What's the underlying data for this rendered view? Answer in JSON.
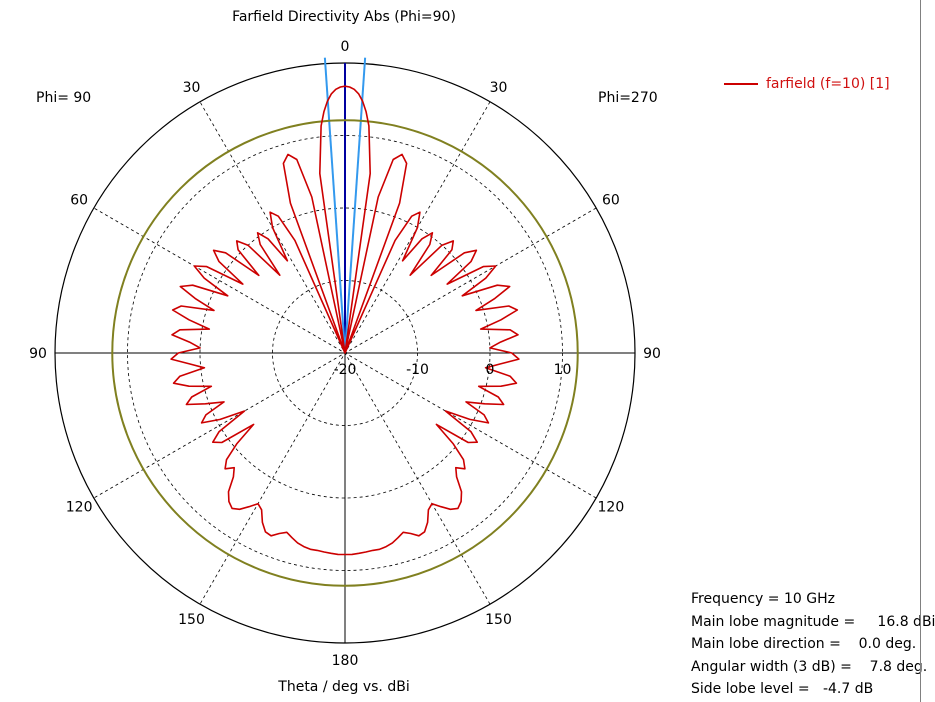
{
  "chart_data": {
    "type": "polar",
    "title": "Farfield Directivity Abs (Phi=90)",
    "xlabel": "Theta / deg vs. dBi",
    "left_half_label": "Phi= 90",
    "right_half_label": "Phi=270",
    "angle_tick_labels": [
      "0",
      "30",
      "60",
      "90",
      "120",
      "150",
      "180"
    ],
    "angle_ticks_deg": [
      0,
      30,
      60,
      90,
      120,
      150,
      180
    ],
    "radial_tick_labels": [
      "-20",
      "-10",
      "0",
      "10"
    ],
    "radial_ticks_dbi": [
      -20,
      -10,
      0,
      10
    ],
    "radial_range_dbi": [
      -20,
      20
    ],
    "series": [
      {
        "name": "farfield (f=10) [1]",
        "color": "#cc0000",
        "theta_deg": [
          0,
          1,
          2,
          3,
          4,
          5,
          6,
          8,
          10,
          12,
          14,
          16,
          18,
          20,
          22,
          24,
          26,
          28,
          30,
          32,
          34,
          36,
          38,
          40,
          42,
          44,
          46,
          48,
          50,
          52,
          54,
          56,
          58,
          60,
          62,
          64,
          66,
          68,
          70,
          72,
          74,
          76,
          78,
          80,
          82,
          84,
          86,
          88,
          90,
          92,
          94,
          96,
          98,
          100,
          102,
          104,
          106,
          108,
          110,
          112,
          114,
          116,
          118,
          120,
          122,
          124,
          126,
          128,
          130,
          132,
          134,
          136,
          138,
          140,
          142,
          144,
          146,
          148,
          150,
          152,
          154,
          156,
          158,
          160,
          162,
          164,
          166,
          168,
          170,
          172,
          174,
          176,
          178,
          180
        ],
        "directivity_dbi": [
          16.8,
          16.7,
          16.4,
          15.8,
          14.8,
          13.4,
          11.5,
          5,
          -20,
          2,
          7.5,
          8.5,
          7.5,
          2,
          -20,
          -3,
          1,
          2,
          0,
          -5,
          -1,
          0.5,
          -1,
          -6,
          0,
          1.5,
          0.5,
          -4,
          1.5,
          3,
          1.5,
          -3,
          2.5,
          4,
          2,
          -2,
          3,
          4.5,
          2,
          -1,
          3.5,
          4.5,
          2,
          -1,
          3,
          4,
          1.5,
          0,
          3,
          4,
          1.5,
          -0.5,
          3,
          4,
          2,
          -1,
          2,
          3,
          0.5,
          -2,
          1,
          2,
          -0.5,
          -4,
          0.5,
          2,
          1,
          -4,
          -0.5,
          2,
          3,
          2,
          3,
          5,
          6,
          6.5,
          6,
          5,
          4,
          4.5,
          6,
          7,
          7.2,
          6.5,
          6,
          6.5,
          7,
          7.3,
          7.5,
          7.5,
          7.6,
          7.7,
          7.8,
          7.8
        ]
      }
    ],
    "reference_lines": [
      {
        "name": "main lobe direction",
        "angle_deg": 0,
        "color": "#0000a0"
      },
      {
        "name": "3 dB angular width",
        "angle_deg": [
          -3.9,
          3.9
        ],
        "color": "#3399ee"
      },
      {
        "name": "side lobe level",
        "level_dbi": 12.1,
        "color": "#808020"
      }
    ],
    "grid": true
  },
  "info": {
    "frequency": "Frequency = 10 GHz",
    "magnitude": "Main lobe magnitude =     16.8 dBi",
    "direction": "Main lobe direction =    0.0 deg.",
    "width": "Angular width (3 dB) =    7.8 deg.",
    "sidelobe": "Side lobe level =   -4.7 dB"
  }
}
